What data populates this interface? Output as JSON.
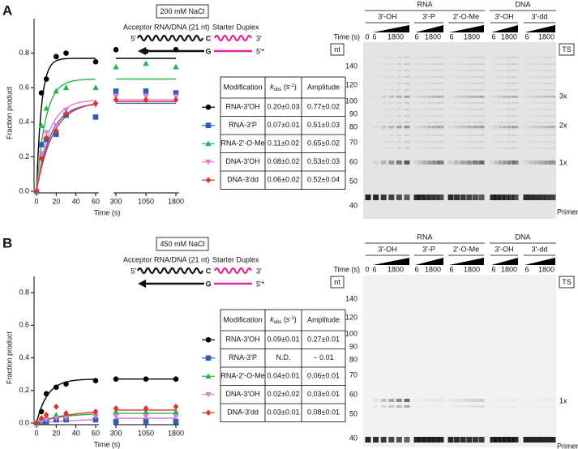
{
  "chart_data": [
    {
      "type": "scatter",
      "y_label": "Fraction product",
      "x_label": "Time (s)",
      "x": [
        0,
        5,
        10,
        20,
        30,
        60,
        300,
        1050,
        1800
      ],
      "xlim": [
        [
          0,
          60
        ],
        [
          300,
          1800
        ]
      ],
      "xticks": [
        0,
        20,
        40,
        60,
        300,
        1050,
        1800
      ],
      "ylim": [
        0,
        1.0
      ],
      "yticks": [
        {
          "value": 0,
          "label": "0.0"
        },
        0.2,
        0.4,
        0.6,
        0.8
      ],
      "series": [
        {
          "name": "RNA-3'OH",
          "color": "#000000",
          "marker": "circle",
          "values": [
            0,
            0.57,
            0.65,
            0.78,
            0.8,
            0.75,
            0.82,
            0.81,
            0.82
          ],
          "fit": {
            "k": 0.2,
            "amplitude": 0.77
          }
        },
        {
          "name": "RNA-3'P",
          "color": "#2d5fb4",
          "marker": "square",
          "values": [
            0,
            0.27,
            0.3,
            0.33,
            0.44,
            0.43,
            0.58,
            0.58,
            0.57
          ],
          "fit": {
            "k": 0.07,
            "amplitude": 0.51
          }
        },
        {
          "name": "RNA-2'-O-Me",
          "color": "#2bb24c",
          "marker": "triangle",
          "values": [
            0,
            0.38,
            0.48,
            0.58,
            0.6,
            0.6,
            0.72,
            0.74,
            0.72
          ],
          "fit": {
            "k": 0.11,
            "amplitude": 0.65
          }
        },
        {
          "name": "DNA-3'OH",
          "color": "#d77fd0",
          "marker": "triangle-down",
          "values": [
            0,
            0.22,
            0.34,
            0.38,
            0.47,
            0.5,
            0.55,
            0.55,
            0.55
          ],
          "fit": {
            "k": 0.08,
            "amplitude": 0.53
          }
        },
        {
          "name": "DNA-3'dd",
          "color": "#e0322b",
          "marker": "diamond",
          "values": [
            0,
            0.19,
            0.31,
            0.35,
            0.45,
            0.51,
            0.53,
            0.53,
            0.53
          ],
          "fit": {
            "k": 0.06,
            "amplitude": 0.52
          }
        }
      ]
    },
    {
      "type": "scatter",
      "y_label": "Fraction product",
      "x_label": "Time (s)",
      "x": [
        0,
        5,
        10,
        20,
        30,
        60,
        300,
        1050,
        1800
      ],
      "xlim": [
        [
          0,
          60
        ],
        [
          300,
          1800
        ]
      ],
      "xticks": [
        0,
        20,
        40,
        60,
        300,
        1050,
        1800
      ],
      "ylim": [
        0,
        0.9
      ],
      "yticks": [
        {
          "value": 0,
          "label": "0.0"
        },
        0.2,
        0.4,
        0.6,
        0.8
      ],
      "series": [
        {
          "name": "RNA-3'OH",
          "color": "#000000",
          "marker": "circle",
          "values": [
            0,
            0.07,
            0.18,
            0.22,
            0.24,
            0.26,
            0.27,
            0.27,
            0.27
          ],
          "fit": {
            "k": 0.09,
            "amplitude": 0.27
          }
        },
        {
          "name": "RNA-3'P",
          "color": "#2d5fb4",
          "marker": "square",
          "values": [
            0,
            0.01,
            0.01,
            0.02,
            0.02,
            0.02,
            0.01,
            0.01,
            0.01
          ]
        },
        {
          "name": "RNA-2'-O-Me",
          "color": "#2bb24c",
          "marker": "triangle",
          "values": [
            0,
            0.02,
            0.04,
            0.05,
            0.06,
            0.06,
            0.07,
            0.07,
            0.07
          ],
          "fit": {
            "k": 0.04,
            "amplitude": 0.06
          }
        },
        {
          "name": "DNA-3'OH",
          "color": "#d77fd0",
          "marker": "triangle-down",
          "values": [
            0,
            0.01,
            0.02,
            0.03,
            0.03,
            0.04,
            0.04,
            0.04,
            0.04
          ],
          "fit": {
            "k": 0.02,
            "amplitude": 0.03
          }
        },
        {
          "name": "DNA-3'dd",
          "color": "#e0322b",
          "marker": "diamond",
          "values": [
            0,
            0.03,
            0.05,
            0.1,
            0.06,
            0.07,
            0.09,
            0.09,
            0.1
          ],
          "fit": {
            "k": 0.03,
            "amplitude": 0.08
          }
        }
      ]
    }
  ],
  "panels": [
    {
      "label": "A",
      "salt": "200 mM NaCl",
      "diagram": {
        "acceptor": "Acceptor RNA/DNA (21 nt)",
        "starter": "Starter Duplex",
        "five_prime": "5'",
        "acceptor_base": "C",
        "starter_three_prime": "3'",
        "starter_base": "G",
        "starter_five_prime": "5'*"
      },
      "table": {
        "header": {
          "modification": "Modification",
          "k_symbol": "k",
          "k_subscript": "obs",
          "unit_open": " (s",
          "unit_superscript": "-1",
          "unit_close": ")",
          "amplitude": "Amplitude"
        },
        "rows": [
          [
            "0.20±0.03",
            "0.77±0.02"
          ],
          [
            "0.07±0.01",
            "0.51±0.03"
          ],
          [
            "0.11±0.02",
            "0.65±0.02"
          ],
          [
            "0.08±0.02",
            "0.53±0.03"
          ],
          [
            "0.06±0.02",
            "0.52±0.04"
          ]
        ]
      },
      "gel": {
        "groups": [
          "RNA",
          "DNA"
        ],
        "lanes": [
          "3'-OH",
          "3'-P",
          "2'-O-Me",
          "3'-OH",
          "3'-dd"
        ],
        "time_label": "Time (s)",
        "times": [
          "0",
          "6",
          "1800",
          "6",
          "1800",
          "6",
          "1800",
          "6",
          "1800",
          "6",
          "1800"
        ],
        "nt": "nt",
        "ts": "TS",
        "markers": [
          "140",
          "120",
          "100",
          "90",
          "80",
          "70",
          "60",
          "50",
          "40"
        ],
        "products": [
          "3x",
          "2x",
          "1x"
        ],
        "primer": "Primer"
      }
    },
    {
      "label": "B",
      "salt": "450 mM NaCl",
      "diagram": {
        "acceptor": "Acceptor RNA/DNA (21 nt)",
        "starter": "Starter Duplex",
        "five_prime": "5'",
        "acceptor_base": "C",
        "starter_three_prime": "3'",
        "starter_base": "G",
        "starter_five_prime": "5'*"
      },
      "table": {
        "header": {
          "modification": "Modification",
          "k_symbol": "k",
          "k_subscript": "obs",
          "unit_open": " (s",
          "unit_superscript": "-1",
          "unit_close": ")",
          "amplitude": "Amplitude"
        },
        "rows": [
          [
            "0.09±0.01",
            "0.27±0.01"
          ],
          [
            "N.D.",
            "~ 0.01"
          ],
          [
            "0.04±0.01",
            "0.06±0.01"
          ],
          [
            "0.02±0.02",
            "0.03±0.01"
          ],
          [
            "0.03±0.01",
            "0.08±0.01"
          ]
        ]
      },
      "gel": {
        "groups": [
          "RNA",
          "DNA"
        ],
        "lanes": [
          "3'-OH",
          "3'-P",
          "2'-O-Me",
          "3'-OH",
          "3'-dd"
        ],
        "time_label": "Time (s)",
        "times": [
          "0",
          "6",
          "1800",
          "6",
          "1800",
          "6",
          "1800",
          "6",
          "1800",
          "6",
          "1800"
        ],
        "nt": "nt",
        "ts": "TS",
        "markers": [
          "140",
          "120",
          "100",
          "90",
          "80",
          "70",
          "60",
          "50",
          "40"
        ],
        "products": [
          "1x"
        ],
        "primer": "Primer"
      }
    }
  ]
}
